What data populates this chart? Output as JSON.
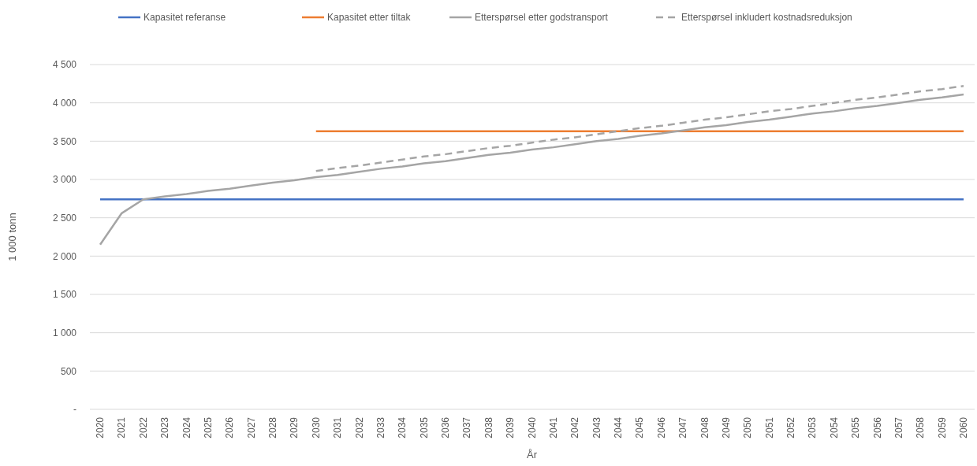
{
  "chart_data": {
    "type": "line",
    "xlabel": "År",
    "ylabel": "1 000 tonn",
    "categories": [
      "2020",
      "2021",
      "2022",
      "2023",
      "2024",
      "2025",
      "2026",
      "2027",
      "2028",
      "2029",
      "2030",
      "2031",
      "2032",
      "2033",
      "2034",
      "2035",
      "2036",
      "2037",
      "2038",
      "2039",
      "2040",
      "2041",
      "2042",
      "2043",
      "2044",
      "2045",
      "2046",
      "2047",
      "2048",
      "2049",
      "2050",
      "2051",
      "2052",
      "2053",
      "2054",
      "2055",
      "2056",
      "2057",
      "2058",
      "2059",
      "2060"
    ],
    "ylim": [
      0,
      4500
    ],
    "yticks": [
      {
        "value": 0,
        "label": "-"
      },
      {
        "value": 500,
        "label": "500"
      },
      {
        "value": 1000,
        "label": "1 000"
      },
      {
        "value": 1500,
        "label": "1 500"
      },
      {
        "value": 2000,
        "label": "2 000"
      },
      {
        "value": 2500,
        "label": "2 500"
      },
      {
        "value": 3000,
        "label": "3 000"
      },
      {
        "value": 3500,
        "label": "3 500"
      },
      {
        "value": 4000,
        "label": "4 000"
      },
      {
        "value": 4500,
        "label": "4 500"
      }
    ],
    "grid": "y",
    "legend": "top",
    "series": [
      {
        "name": "Kapasitet referanse",
        "color": "#4472c4",
        "values": [
          2740,
          2740,
          2740,
          2740,
          2740,
          2740,
          2740,
          2740,
          2740,
          2740,
          2740,
          2740,
          2740,
          2740,
          2740,
          2740,
          2740,
          2740,
          2740,
          2740,
          2740,
          2740,
          2740,
          2740,
          2740,
          2740,
          2740,
          2740,
          2740,
          2740,
          2740,
          2740,
          2740,
          2740,
          2740,
          2740,
          2740,
          2740,
          2740,
          2740,
          2740
        ]
      },
      {
        "name": "Kapasitet etter tiltak",
        "color": "#ed7d31",
        "values": [
          null,
          null,
          null,
          null,
          null,
          null,
          null,
          null,
          null,
          null,
          3630,
          3630,
          3630,
          3630,
          3630,
          3630,
          3630,
          3630,
          3630,
          3630,
          3630,
          3630,
          3630,
          3630,
          3630,
          3630,
          3630,
          3630,
          3630,
          3630,
          3630,
          3630,
          3630,
          3630,
          3630,
          3630,
          3630,
          3630,
          3630,
          3630,
          3630
        ]
      },
      {
        "name": "Etterspørsel etter godstransport",
        "color": "#a5a5a5",
        "values": [
          2150,
          2560,
          2740,
          2780,
          2810,
          2850,
          2880,
          2920,
          2960,
          2990,
          3030,
          3060,
          3100,
          3140,
          3170,
          3210,
          3240,
          3280,
          3320,
          3350,
          3390,
          3420,
          3460,
          3500,
          3530,
          3570,
          3600,
          3640,
          3680,
          3710,
          3750,
          3780,
          3820,
          3860,
          3890,
          3930,
          3960,
          4000,
          4040,
          4070,
          4110
        ]
      },
      {
        "name": "Etterspørsel inkludert kostnadsreduksjon",
        "color": "#a5a5a5",
        "line_style": "dashed",
        "values": [
          null,
          null,
          null,
          null,
          null,
          null,
          null,
          null,
          null,
          null,
          3110,
          3150,
          3180,
          3220,
          3260,
          3300,
          3330,
          3370,
          3410,
          3440,
          3480,
          3520,
          3550,
          3590,
          3630,
          3670,
          3700,
          3740,
          3780,
          3810,
          3850,
          3890,
          3920,
          3960,
          4000,
          4040,
          4070,
          4110,
          4150,
          4180,
          4220
        ]
      }
    ]
  }
}
